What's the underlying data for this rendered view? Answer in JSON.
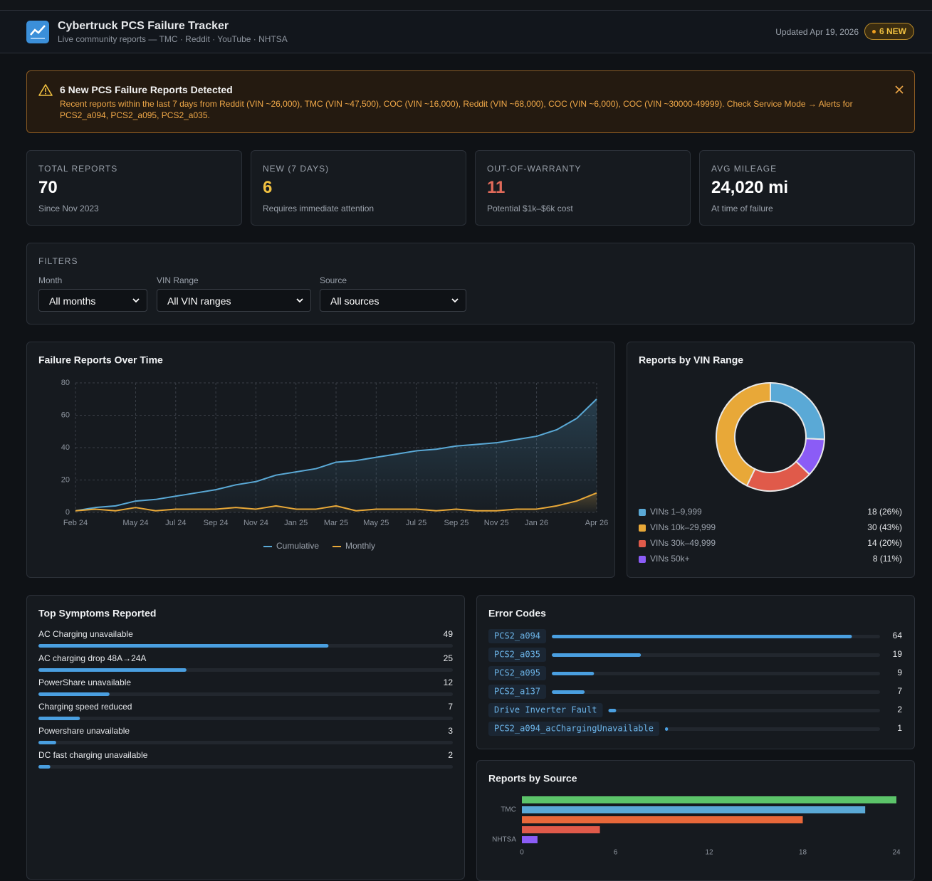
{
  "header": {
    "title": "Cybertruck PCS Failure Tracker",
    "subtitle": "Live community reports — TMC · Reddit · YouTube · NHTSA",
    "updated": "Updated Apr 19, 2026",
    "badge": "6 NEW"
  },
  "alert": {
    "title": "6 New PCS Failure Reports Detected",
    "text": "Recent reports within the last 7 days from Reddit (VIN ~26,000), TMC (VIN ~47,500), COC (VIN ~16,000), Reddit (VIN ~68,000), COC (VIN ~6,000), COC (VIN ~30000-49999). Check Service Mode → Alerts for PCS2_a094, PCS2_a095, PCS2_a035."
  },
  "kpis": [
    {
      "label": "TOTAL REPORTS",
      "value": "70",
      "note": "Since Nov 2023"
    },
    {
      "label": "NEW (7 DAYS)",
      "value": "6",
      "note": "Requires immediate attention"
    },
    {
      "label": "OUT-OF-WARRANTY",
      "value": "11",
      "note": "Potential $1k–$6k cost"
    },
    {
      "label": "AVG MILEAGE",
      "value": "24,020 mi",
      "note": "At time of failure"
    }
  ],
  "filters": {
    "title": "FILTERS",
    "fields": [
      {
        "label": "Month",
        "value": "All months"
      },
      {
        "label": "VIN Range",
        "value": "All VIN ranges"
      },
      {
        "label": "Source",
        "value": "All sources"
      }
    ]
  },
  "chart_data": [
    {
      "type": "line",
      "title": "Failure Reports Over Time",
      "categories": [
        "Feb 24",
        null,
        null,
        "May 24",
        null,
        "Jul 24",
        null,
        "Sep 24",
        null,
        "Nov 24",
        null,
        "Jan 25",
        null,
        "Mar 25",
        null,
        "May 25",
        null,
        "Jul 25",
        null,
        "Sep 25",
        null,
        "Nov 25",
        null,
        "Jan 26",
        null,
        null,
        "Apr 26"
      ],
      "series": [
        {
          "name": "Cumulative",
          "color": "#5aa9d6",
          "values": [
            1,
            3,
            4,
            7,
            8,
            10,
            12,
            14,
            17,
            19,
            23,
            25,
            27,
            31,
            32,
            34,
            36,
            38,
            39,
            41,
            42,
            43,
            45,
            47,
            51,
            58,
            70
          ]
        },
        {
          "name": "Monthly",
          "color": "#e8a838",
          "values": [
            1,
            2,
            1,
            3,
            1,
            2,
            2,
            2,
            3,
            2,
            4,
            2,
            2,
            4,
            1,
            2,
            2,
            2,
            1,
            2,
            1,
            1,
            2,
            2,
            4,
            7,
            12
          ]
        }
      ],
      "ylim": [
        0,
        80
      ],
      "yticks": [
        0,
        20,
        40,
        60,
        80
      ],
      "grid": true,
      "legend": "bottom"
    },
    {
      "type": "doughnut",
      "title": "Reports by VIN Range",
      "categories": [
        "VINs 1–9,999",
        "VINs 10k–29,999",
        "VINs 30k–49,999",
        "VINs 50k+"
      ],
      "values": [
        18,
        30,
        14,
        8
      ],
      "value_labels": [
        "18 (26%)",
        "30 (43%)",
        "14 (20%)",
        "8 (11%)"
      ],
      "colors": [
        "#5aa9d6",
        "#e8a838",
        "#e05a4a",
        "#8b5cf6"
      ]
    },
    {
      "type": "progress",
      "title": "Top Symptoms Reported",
      "categories": [
        "AC Charging unavailable",
        "AC charging drop 48A→24A",
        "PowerShare unavailable",
        "Charging speed reduced",
        "Powershare unavailable",
        "DC fast charging unavailable"
      ],
      "values": [
        49,
        25,
        12,
        7,
        3,
        2
      ],
      "xlim": [
        0,
        70
      ],
      "color": "#4a9fe0"
    },
    {
      "type": "progress",
      "title": "Error Codes",
      "categories": [
        "PCS2_a094",
        "PCS2_a035",
        "PCS2_a095",
        "PCS2_a137",
        "Drive Inverter Fault",
        "PCS2_a094_acChargingUnavailable"
      ],
      "values": [
        64,
        19,
        9,
        7,
        2,
        1
      ],
      "xlim": [
        0,
        70
      ],
      "color": "#4a9fe0"
    },
    {
      "type": "hbar",
      "title": "Reports by Source",
      "categories": [
        null,
        "TMC",
        null,
        null,
        "NHTSA"
      ],
      "values": [
        24,
        22,
        18,
        5,
        1
      ],
      "colors": [
        "#5cc46a",
        "#5aa9d6",
        "#e8683a",
        "#e05a4a",
        "#8b5cf6"
      ],
      "xlim": [
        0,
        24
      ],
      "xticks": [
        0,
        6,
        12,
        18,
        24
      ]
    }
  ]
}
